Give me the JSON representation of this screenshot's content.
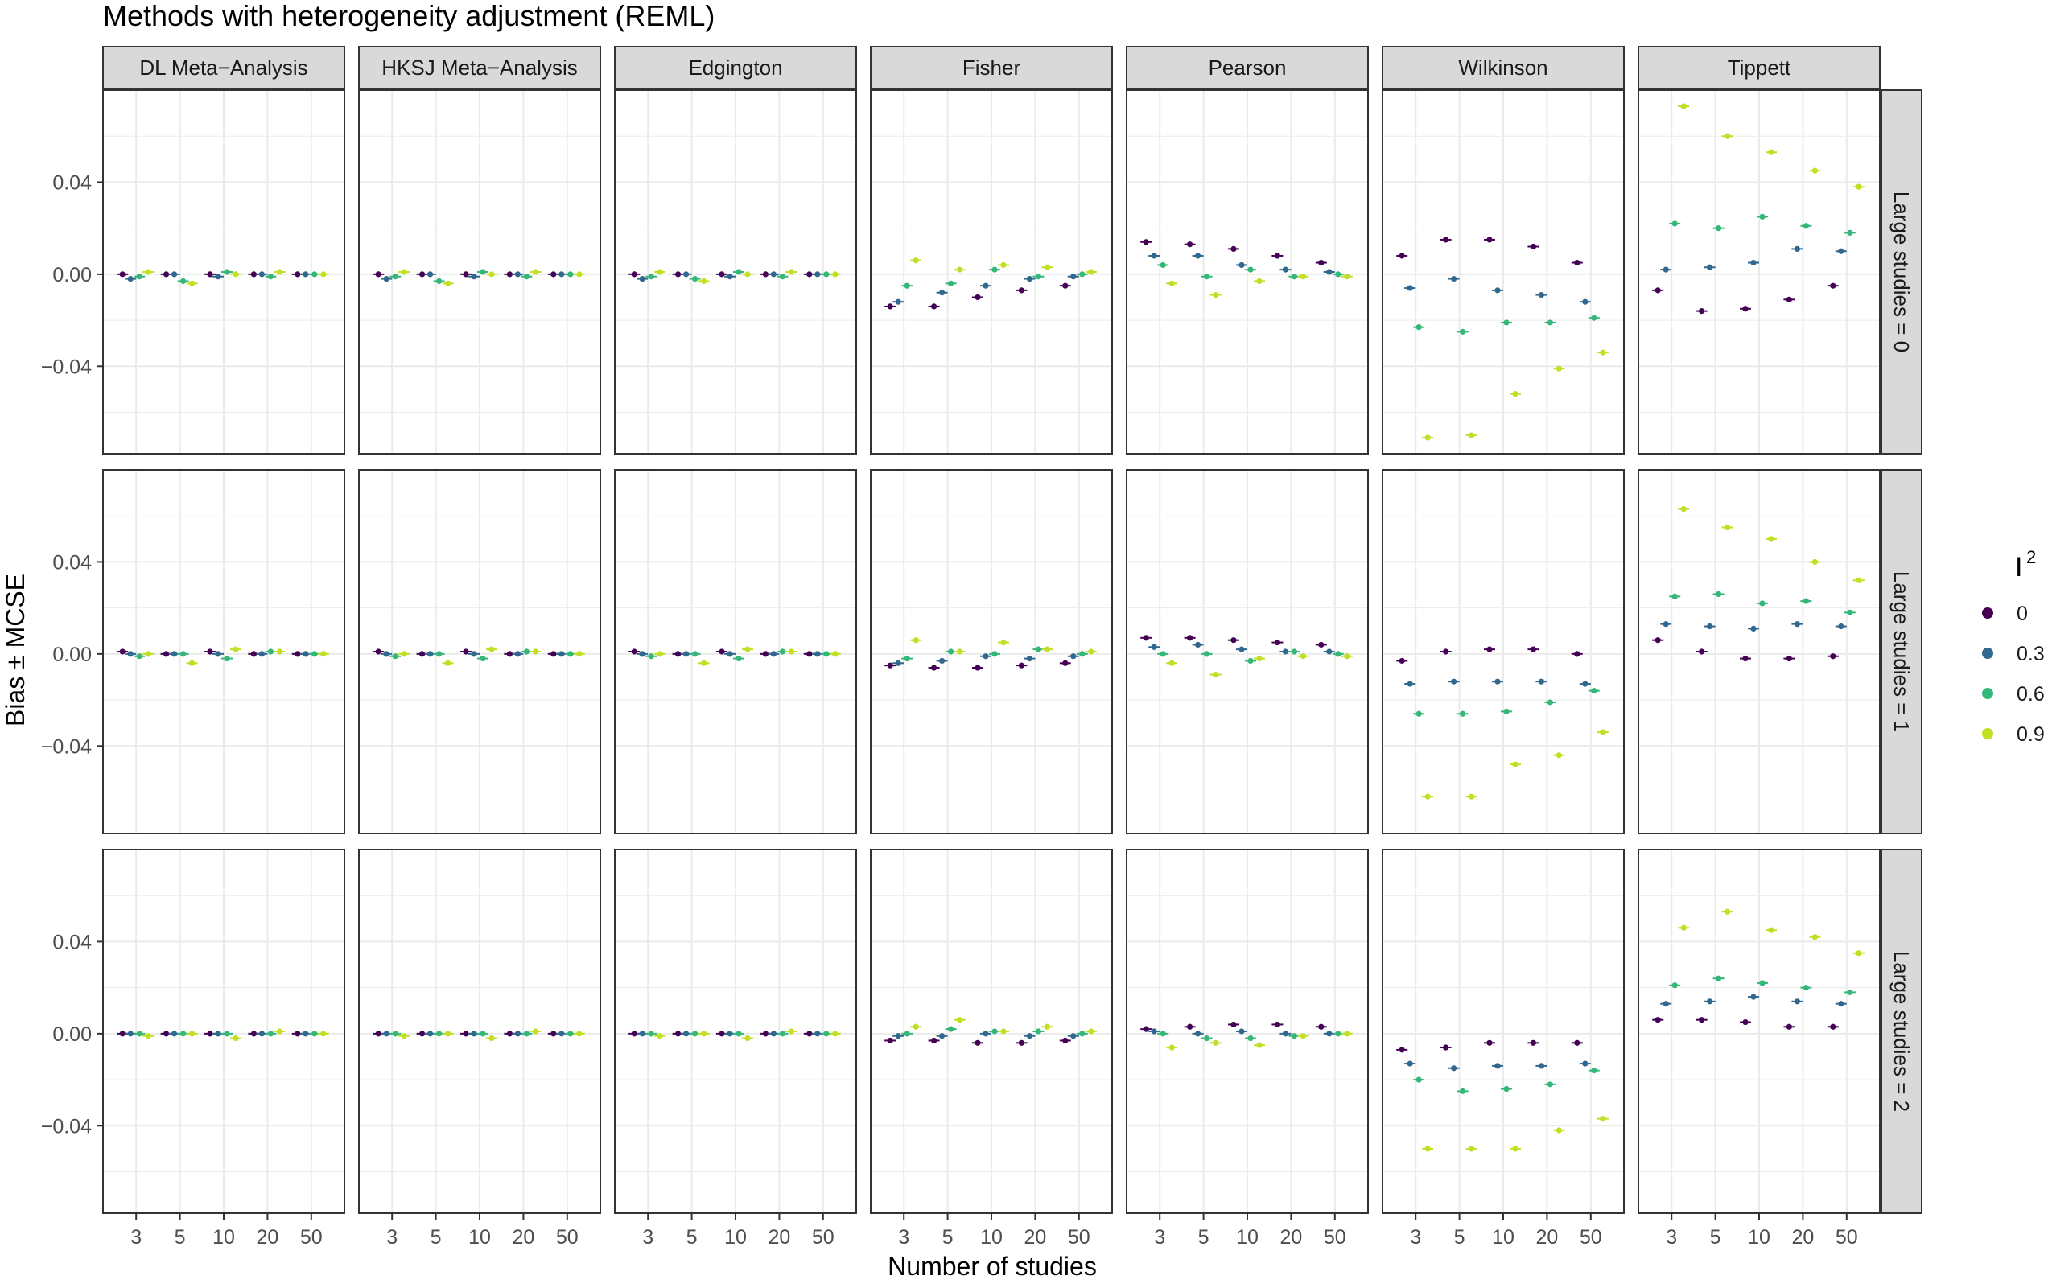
{
  "chart_data": {
    "type": "scatter",
    "title": "Methods with heterogeneity adjustment (REML)",
    "xlabel": "Number of studies",
    "ylabel": "Bias ± MCSE",
    "x_categories": [
      "3",
      "5",
      "10",
      "20",
      "50"
    ],
    "y_ticks": [
      "0.04",
      "0.00",
      "−0.04"
    ],
    "ylim": [
      -0.078,
      0.08
    ],
    "columns": [
      "DL Meta−Analysis",
      "HKSJ Meta−Analysis",
      "Edgington",
      "Fisher",
      "Pearson",
      "Wilkinson",
      "Tippett"
    ],
    "rows": [
      "Large studies = 0",
      "Large studies = 1",
      "Large studies = 2"
    ],
    "legend": {
      "title": "I",
      "title_superscript": "2",
      "position": "right",
      "items": [
        {
          "label": "0",
          "color": "#440154"
        },
        {
          "label": "0.3",
          "color": "#31688E"
        },
        {
          "label": "0.6",
          "color": "#35B779"
        },
        {
          "label": "0.9",
          "color": "#C2DF23"
        }
      ]
    },
    "grid": true,
    "values": [
      [
        [
          [
            0.0,
            -0.002,
            -0.001,
            0.001
          ],
          [
            0.0,
            0.0,
            -0.003,
            -0.004
          ],
          [
            0.0,
            -0.001,
            0.001,
            0.0
          ],
          [
            0.0,
            0.0,
            -0.001,
            0.001
          ],
          [
            0.0,
            0.0,
            0.0,
            0.0
          ]
        ],
        [
          [
            0.0,
            -0.002,
            -0.001,
            0.001
          ],
          [
            0.0,
            0.0,
            -0.003,
            -0.004
          ],
          [
            0.0,
            -0.001,
            0.001,
            0.0
          ],
          [
            0.0,
            0.0,
            -0.001,
            0.001
          ],
          [
            0.0,
            0.0,
            0.0,
            0.0
          ]
        ],
        [
          [
            0.0,
            -0.002,
            -0.001,
            0.001
          ],
          [
            0.0,
            0.0,
            -0.002,
            -0.003
          ],
          [
            0.0,
            -0.001,
            0.001,
            0.0
          ],
          [
            0.0,
            0.0,
            -0.001,
            0.001
          ],
          [
            0.0,
            0.0,
            0.0,
            0.0
          ]
        ],
        [
          [
            -0.014,
            -0.012,
            -0.005,
            0.006
          ],
          [
            -0.014,
            -0.008,
            -0.004,
            0.002
          ],
          [
            -0.01,
            -0.005,
            0.002,
            0.004
          ],
          [
            -0.007,
            -0.002,
            -0.001,
            0.003
          ],
          [
            -0.005,
            -0.001,
            0.0,
            0.001
          ]
        ],
        [
          [
            0.014,
            0.008,
            0.004,
            -0.004
          ],
          [
            0.013,
            0.008,
            -0.001,
            -0.009
          ],
          [
            0.011,
            0.004,
            0.002,
            -0.003
          ],
          [
            0.008,
            0.002,
            -0.001,
            -0.001
          ],
          [
            0.005,
            0.001,
            0.0,
            -0.001
          ]
        ],
        [
          [
            0.008,
            -0.006,
            -0.023,
            -0.071
          ],
          [
            0.015,
            -0.002,
            -0.025,
            -0.07
          ],
          [
            0.015,
            -0.007,
            -0.021,
            -0.052
          ],
          [
            0.012,
            -0.009,
            -0.021,
            -0.041
          ],
          [
            0.005,
            -0.012,
            -0.019,
            -0.034
          ]
        ],
        [
          [
            -0.007,
            0.002,
            0.022,
            0.073
          ],
          [
            -0.016,
            0.003,
            0.02,
            0.06
          ],
          [
            -0.015,
            0.005,
            0.025,
            0.053
          ],
          [
            -0.011,
            0.011,
            0.021,
            0.045
          ],
          [
            -0.005,
            0.01,
            0.018,
            0.038
          ]
        ]
      ],
      [
        [
          [
            0.001,
            0.0,
            -0.001,
            0.0
          ],
          [
            0.0,
            0.0,
            0.0,
            -0.004
          ],
          [
            0.001,
            0.0,
            -0.002,
            0.002
          ],
          [
            0.0,
            0.0,
            0.001,
            0.001
          ],
          [
            0.0,
            0.0,
            0.0,
            0.0
          ]
        ],
        [
          [
            0.001,
            0.0,
            -0.001,
            0.0
          ],
          [
            0.0,
            0.0,
            0.0,
            -0.004
          ],
          [
            0.001,
            0.0,
            -0.002,
            0.002
          ],
          [
            0.0,
            0.0,
            0.001,
            0.001
          ],
          [
            0.0,
            0.0,
            0.0,
            0.0
          ]
        ],
        [
          [
            0.001,
            0.0,
            -0.001,
            0.0
          ],
          [
            0.0,
            0.0,
            0.0,
            -0.004
          ],
          [
            0.001,
            0.0,
            -0.002,
            0.002
          ],
          [
            0.0,
            0.0,
            0.001,
            0.001
          ],
          [
            0.0,
            0.0,
            0.0,
            0.0
          ]
        ],
        [
          [
            -0.005,
            -0.004,
            -0.002,
            0.006
          ],
          [
            -0.006,
            -0.003,
            0.001,
            0.001
          ],
          [
            -0.006,
            -0.001,
            0.0,
            0.005
          ],
          [
            -0.005,
            -0.002,
            0.002,
            0.002
          ],
          [
            -0.004,
            -0.001,
            0.0,
            0.001
          ]
        ],
        [
          [
            0.007,
            0.003,
            0.0,
            -0.004
          ],
          [
            0.007,
            0.004,
            0.0,
            -0.009
          ],
          [
            0.006,
            0.002,
            -0.003,
            -0.002
          ],
          [
            0.005,
            0.001,
            0.001,
            -0.001
          ],
          [
            0.004,
            0.001,
            0.0,
            -0.001
          ]
        ],
        [
          [
            -0.003,
            -0.013,
            -0.026,
            -0.062
          ],
          [
            0.001,
            -0.012,
            -0.026,
            -0.062
          ],
          [
            0.002,
            -0.012,
            -0.025,
            -0.048
          ],
          [
            0.002,
            -0.012,
            -0.021,
            -0.044
          ],
          [
            0.0,
            -0.013,
            -0.016,
            -0.034
          ]
        ],
        [
          [
            0.006,
            0.013,
            0.025,
            0.063
          ],
          [
            0.001,
            0.012,
            0.026,
            0.055
          ],
          [
            -0.002,
            0.011,
            0.022,
            0.05
          ],
          [
            -0.002,
            0.013,
            0.023,
            0.04
          ],
          [
            -0.001,
            0.012,
            0.018,
            0.032
          ]
        ]
      ],
      [
        [
          [
            0.0,
            0.0,
            0.0,
            -0.001
          ],
          [
            0.0,
            0.0,
            0.0,
            0.0
          ],
          [
            0.0,
            0.0,
            0.0,
            -0.002
          ],
          [
            0.0,
            0.0,
            0.0,
            0.001
          ],
          [
            0.0,
            0.0,
            0.0,
            0.0
          ]
        ],
        [
          [
            0.0,
            0.0,
            0.0,
            -0.001
          ],
          [
            0.0,
            0.0,
            0.0,
            0.0
          ],
          [
            0.0,
            0.0,
            0.0,
            -0.002
          ],
          [
            0.0,
            0.0,
            0.0,
            0.001
          ],
          [
            0.0,
            0.0,
            0.0,
            0.0
          ]
        ],
        [
          [
            0.0,
            0.0,
            0.0,
            -0.001
          ],
          [
            0.0,
            0.0,
            0.0,
            0.0
          ],
          [
            0.0,
            0.0,
            0.0,
            -0.002
          ],
          [
            0.0,
            0.0,
            0.0,
            0.001
          ],
          [
            0.0,
            0.0,
            0.0,
            0.0
          ]
        ],
        [
          [
            -0.003,
            -0.001,
            0.0,
            0.003
          ],
          [
            -0.003,
            -0.001,
            0.002,
            0.006
          ],
          [
            -0.004,
            0.0,
            0.001,
            0.001
          ],
          [
            -0.004,
            -0.001,
            0.001,
            0.003
          ],
          [
            -0.003,
            -0.001,
            0.0,
            0.001
          ]
        ],
        [
          [
            0.002,
            0.001,
            0.0,
            -0.006
          ],
          [
            0.003,
            0.0,
            -0.002,
            -0.004
          ],
          [
            0.004,
            0.001,
            -0.002,
            -0.005
          ],
          [
            0.004,
            0.0,
            -0.001,
            -0.001
          ],
          [
            0.003,
            0.0,
            0.0,
            0.0
          ]
        ],
        [
          [
            -0.007,
            -0.013,
            -0.02,
            -0.05
          ],
          [
            -0.006,
            -0.015,
            -0.025,
            -0.05
          ],
          [
            -0.004,
            -0.014,
            -0.024,
            -0.05
          ],
          [
            -0.004,
            -0.014,
            -0.022,
            -0.042
          ],
          [
            -0.004,
            -0.013,
            -0.016,
            -0.037
          ]
        ],
        [
          [
            0.006,
            0.013,
            0.021,
            0.046
          ],
          [
            0.006,
            0.014,
            0.024,
            0.053
          ],
          [
            0.005,
            0.016,
            0.022,
            0.045
          ],
          [
            0.003,
            0.014,
            0.02,
            0.042
          ],
          [
            0.003,
            0.013,
            0.018,
            0.035
          ]
        ]
      ]
    ]
  }
}
